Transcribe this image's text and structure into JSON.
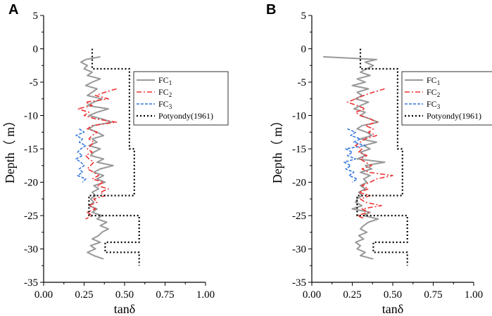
{
  "chart_data": [
    {
      "type": "line",
      "panel_label": "A",
      "xlabel": "tanδ",
      "ylabel": "Depth（ m）",
      "xlim": [
        0,
        1
      ],
      "ylim": [
        -35,
        5
      ],
      "xticks": [
        "0.00",
        "0.25",
        "0.50",
        "0.75",
        "1.00"
      ],
      "yticks": [
        "5",
        "0",
        "-5",
        "-10",
        "-15",
        "-20",
        "-25",
        "-30",
        "-35"
      ],
      "legend": {
        "position": "top-right",
        "entries": [
          {
            "base": "FC",
            "sub": "1"
          },
          {
            "base": "FC",
            "sub": "2"
          },
          {
            "base": "FC",
            "sub": "3"
          },
          {
            "base": "Potyondy(1961)",
            "sub": ""
          }
        ]
      },
      "series": [
        {
          "name": "FC1",
          "color": "#999999",
          "style": "solid",
          "depth": [
            -1.2,
            -1.6,
            -2.0,
            -2.5,
            -3.0,
            -3.5,
            -4.0,
            -4.5,
            -5.0,
            -5.5,
            -6.0,
            -6.5,
            -7.0,
            -7.5,
            -8.0,
            -8.5,
            -9.0,
            -9.5,
            -10.0,
            -10.5,
            -11.0,
            -11.5,
            -12.0,
            -12.5,
            -13.0,
            -13.5,
            -14.0,
            -14.5,
            -15.0,
            -15.5,
            -16.0,
            -16.5,
            -17.0,
            -17.5,
            -18.0,
            -18.5,
            -19.0,
            -19.5,
            -20.0,
            -20.5,
            -21.0,
            -21.5,
            -22.0,
            -22.5,
            -23.0,
            -23.5,
            -24.0,
            -24.5,
            -25.0,
            -25.5,
            -26.0,
            -26.5,
            -27.0,
            -27.5,
            -28.0,
            -28.5,
            -29.0,
            -29.5,
            -30.0,
            -30.5,
            -31.0,
            -31.5
          ],
          "tan_delta": [
            0.35,
            0.26,
            0.23,
            0.27,
            0.25,
            0.3,
            0.27,
            0.35,
            0.3,
            0.26,
            0.33,
            0.3,
            0.27,
            0.36,
            0.31,
            0.27,
            0.4,
            0.33,
            0.28,
            0.36,
            0.42,
            0.31,
            0.28,
            0.33,
            0.37,
            0.3,
            0.33,
            0.28,
            0.35,
            0.31,
            0.29,
            0.37,
            0.33,
            0.43,
            0.35,
            0.31,
            0.37,
            0.33,
            0.38,
            0.31,
            0.34,
            0.3,
            0.32,
            0.29,
            0.31,
            0.28,
            0.33,
            0.3,
            0.36,
            0.33,
            0.39,
            0.35,
            0.4,
            0.36,
            0.34,
            0.3,
            0.35,
            0.29,
            0.32,
            0.27,
            0.31,
            0.37
          ]
        },
        {
          "name": "FC2",
          "color": "#ee3333",
          "style": "dashdot",
          "depth": [
            -6.0,
            -6.5,
            -7.0,
            -7.5,
            -8.0,
            -8.5,
            -9.0,
            -9.5,
            -10.0,
            -10.5,
            -11.0,
            -11.5,
            -12.0,
            -12.5,
            -13.0,
            -13.5,
            -14.0,
            -14.5,
            -15.0,
            -15.5,
            -16.0,
            -16.5,
            -17.0,
            -17.5,
            -18.0,
            -18.5,
            -19.0,
            -19.5,
            -20.0,
            -20.5,
            -21.0,
            -21.5,
            -22.0,
            -22.5,
            -23.0,
            -23.5,
            -24.0,
            -24.5,
            -25.0,
            -25.5
          ],
          "tan_delta": [
            0.45,
            0.38,
            0.32,
            0.4,
            0.26,
            0.3,
            0.21,
            0.28,
            0.25,
            0.32,
            0.45,
            0.3,
            0.27,
            0.33,
            0.3,
            0.28,
            0.31,
            0.29,
            0.27,
            0.3,
            0.26,
            0.28,
            0.31,
            0.29,
            0.27,
            0.31,
            0.34,
            0.3,
            0.37,
            0.33,
            0.4,
            0.35,
            0.38,
            0.31,
            0.33,
            0.28,
            0.32,
            0.27,
            0.3,
            0.26
          ]
        },
        {
          "name": "FC3",
          "color": "#3377dd",
          "style": "dashed",
          "depth": [
            -12.0,
            -12.5,
            -13.0,
            -13.5,
            -14.0,
            -14.5,
            -15.0,
            -15.5,
            -16.0,
            -16.5,
            -17.0,
            -17.5,
            -18.0,
            -18.5,
            -19.0,
            -19.5,
            -20.0
          ],
          "tan_delta": [
            0.22,
            0.25,
            0.2,
            0.24,
            0.22,
            0.26,
            0.23,
            0.21,
            0.24,
            0.2,
            0.23,
            0.25,
            0.22,
            0.24,
            0.21,
            0.26,
            0.24
          ]
        },
        {
          "name": "Potyondy(1961)",
          "color": "#000000",
          "style": "dotted",
          "depth": [
            0,
            -3,
            -3,
            -15,
            -15,
            -22,
            -22,
            -25,
            -25,
            -29,
            -29,
            -30.5,
            -30.5,
            -32.5
          ],
          "tan_delta": [
            0.3,
            0.3,
            0.53,
            0.53,
            0.56,
            0.56,
            0.28,
            0.28,
            0.59,
            0.59,
            0.38,
            0.38,
            0.59,
            0.59
          ]
        }
      ]
    },
    {
      "type": "line",
      "panel_label": "B",
      "xlabel": "tanδ",
      "ylabel": "Depth（ m）",
      "xlim": [
        0,
        1
      ],
      "ylim": [
        -35,
        5
      ],
      "xticks": [
        "0.00",
        "0.25",
        "0.50",
        "0.75",
        "1.00"
      ],
      "yticks": [
        "5",
        "0",
        "-5",
        "-10",
        "-15",
        "-20",
        "-25",
        "-30",
        "-35"
      ],
      "legend": {
        "position": "top-right",
        "entries": [
          {
            "base": "FC",
            "sub": "1"
          },
          {
            "base": "FC",
            "sub": "2"
          },
          {
            "base": "FC",
            "sub": "3"
          },
          {
            "base": "Potyondy(1961)",
            "sub": ""
          }
        ]
      },
      "series": [
        {
          "name": "FC1",
          "color": "#999999",
          "style": "solid",
          "depth": [
            -1.2,
            -1.6,
            -2.0,
            -2.5,
            -3.0,
            -3.5,
            -4.0,
            -4.5,
            -5.0,
            -5.5,
            -6.0,
            -6.5,
            -7.0,
            -7.5,
            -8.0,
            -8.5,
            -9.0,
            -9.5,
            -10.0,
            -10.5,
            -11.0,
            -11.5,
            -12.0,
            -12.5,
            -13.0,
            -13.5,
            -14.0,
            -14.5,
            -15.0,
            -15.5,
            -16.0,
            -16.5,
            -17.0,
            -17.5,
            -18.0,
            -18.5,
            -19.0,
            -19.5,
            -20.0,
            -20.5,
            -21.0,
            -21.5,
            -22.0,
            -22.5,
            -23.0,
            -23.5,
            -24.0,
            -24.5,
            -25.0,
            -25.5,
            -26.0,
            -26.5,
            -27.0,
            -27.5,
            -28.0,
            -28.5,
            -29.0,
            -29.5,
            -30.0,
            -30.5,
            -31.0,
            -31.5
          ],
          "tan_delta": [
            0.07,
            0.4,
            0.33,
            0.38,
            0.34,
            0.3,
            0.36,
            0.28,
            0.33,
            0.25,
            0.35,
            0.28,
            0.31,
            0.27,
            0.35,
            0.3,
            0.26,
            0.33,
            0.3,
            0.36,
            0.41,
            0.31,
            0.28,
            0.34,
            0.37,
            0.3,
            0.4,
            0.32,
            0.36,
            0.3,
            0.33,
            0.28,
            0.45,
            0.33,
            0.37,
            0.3,
            0.36,
            0.32,
            0.34,
            0.3,
            0.33,
            0.29,
            0.31,
            0.28,
            0.27,
            0.31,
            0.25,
            0.36,
            0.32,
            0.41,
            0.35,
            0.32,
            0.3,
            0.34,
            0.29,
            0.32,
            0.27,
            0.3,
            0.28,
            0.33,
            0.3,
            0.38
          ]
        },
        {
          "name": "FC2",
          "color": "#ee3333",
          "style": "dashdot",
          "depth": [
            -6.0,
            -6.5,
            -7.0,
            -7.5,
            -8.0,
            -8.5,
            -9.0,
            -9.5,
            -10.0,
            -10.5,
            -11.0,
            -11.5,
            -12.0,
            -12.5,
            -13.0,
            -13.5,
            -14.0,
            -14.5,
            -15.0,
            -15.5,
            -16.0,
            -16.5,
            -17.0,
            -17.5,
            -18.0,
            -18.5,
            -19.0,
            -19.5,
            -20.0,
            -20.5,
            -21.0,
            -21.5,
            -22.0,
            -22.5,
            -23.0,
            -23.5,
            -24.0,
            -24.5,
            -25.0,
            -25.5
          ],
          "tan_delta": [
            0.45,
            0.38,
            0.32,
            0.27,
            0.22,
            0.28,
            0.33,
            0.27,
            0.3,
            0.36,
            0.4,
            0.33,
            0.38,
            0.35,
            0.4,
            0.33,
            0.3,
            0.27,
            0.31,
            0.29,
            0.34,
            0.3,
            0.33,
            0.37,
            0.31,
            0.35,
            0.5,
            0.4,
            0.36,
            0.31,
            0.35,
            0.29,
            0.36,
            0.3,
            0.33,
            0.43,
            0.31,
            0.35,
            0.28,
            0.33
          ]
        },
        {
          "name": "FC3",
          "color": "#3377dd",
          "style": "dashed",
          "depth": [
            -12.0,
            -12.5,
            -13.0,
            -13.5,
            -14.0,
            -14.5,
            -15.0,
            -15.5,
            -16.0,
            -16.5,
            -17.0,
            -17.5,
            -18.0,
            -18.5,
            -19.0,
            -19.5,
            -20.0
          ],
          "tan_delta": [
            0.22,
            0.27,
            0.24,
            0.3,
            0.26,
            0.33,
            0.21,
            0.25,
            0.22,
            0.27,
            0.2,
            0.24,
            0.21,
            0.26,
            0.23,
            0.28,
            0.25
          ]
        },
        {
          "name": "Potyondy(1961)",
          "color": "#000000",
          "style": "dotted",
          "depth": [
            0,
            -3,
            -3,
            -15,
            -15,
            -22,
            -22,
            -25,
            -25,
            -29,
            -29,
            -30.5,
            -30.5,
            -32.5
          ],
          "tan_delta": [
            0.3,
            0.3,
            0.53,
            0.53,
            0.56,
            0.56,
            0.28,
            0.28,
            0.59,
            0.59,
            0.38,
            0.38,
            0.59,
            0.59
          ]
        }
      ]
    }
  ]
}
